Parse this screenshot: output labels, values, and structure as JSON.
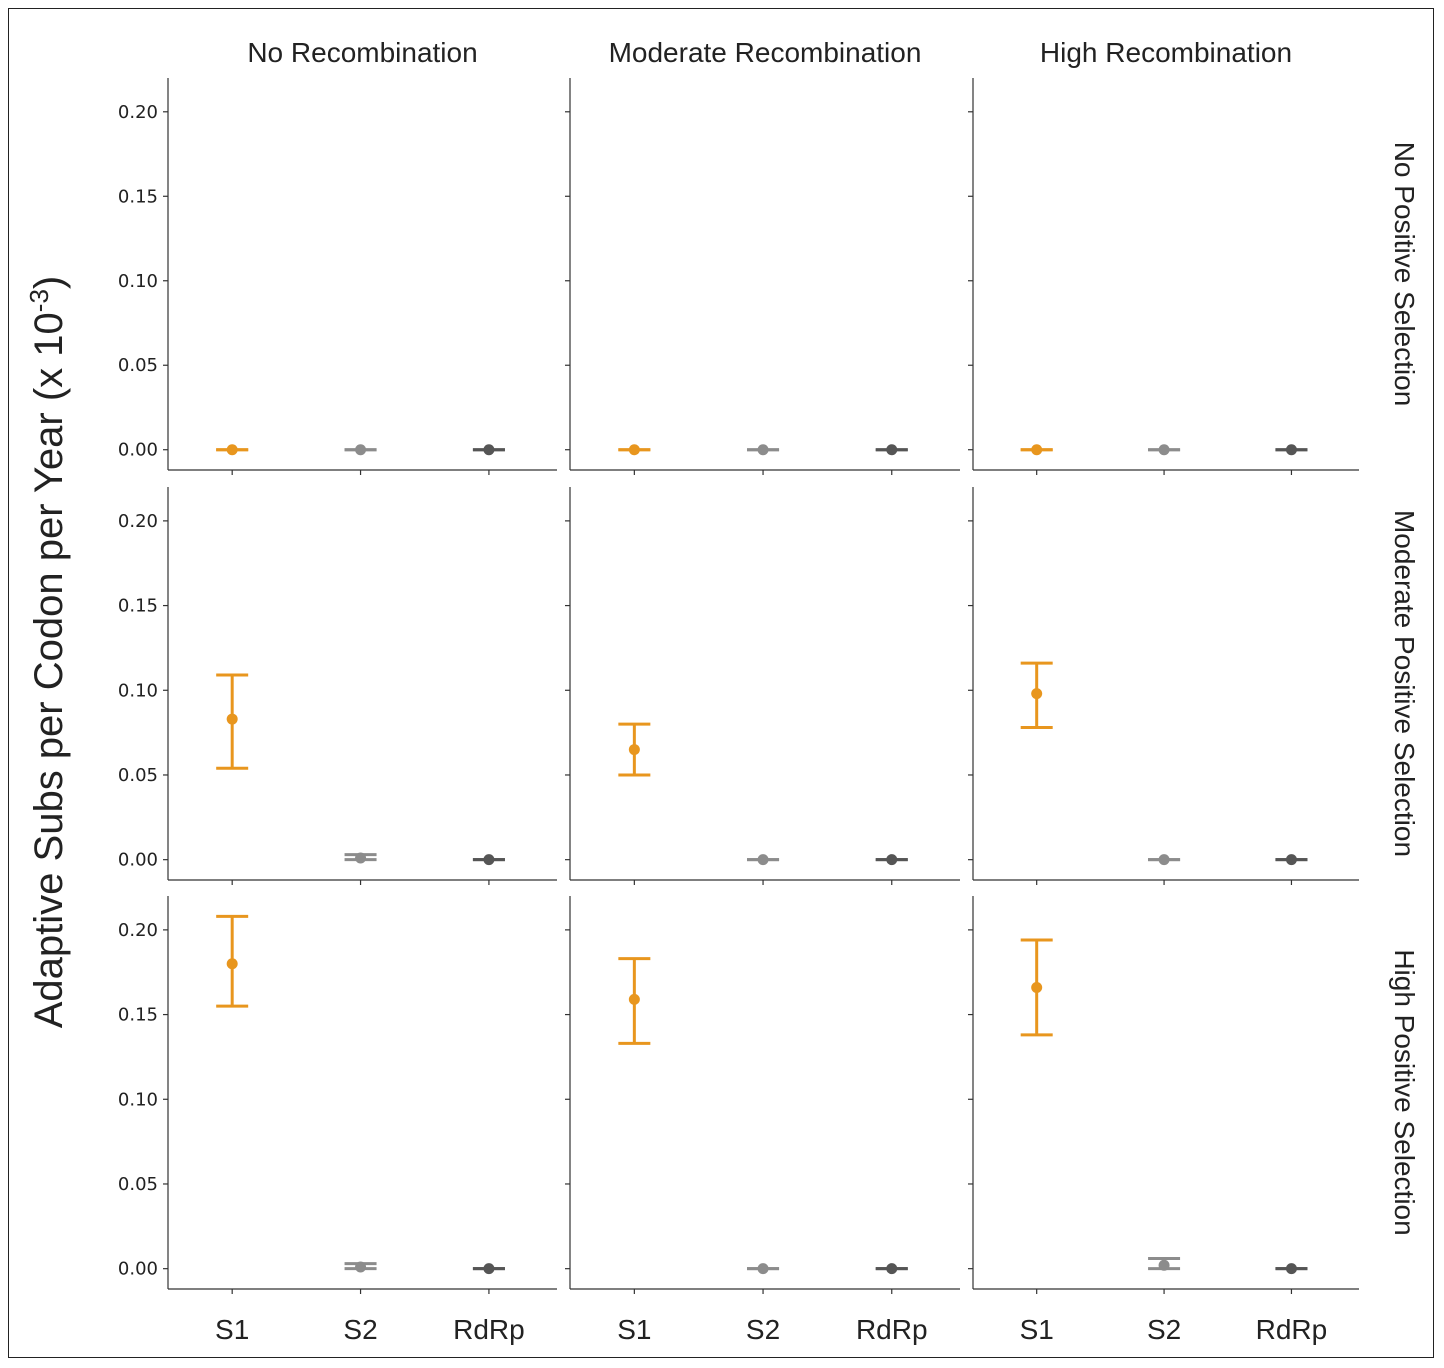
{
  "chart_data": {
    "type": "scatter",
    "subtype": "point-with-error-bars facet grid",
    "ylabel": "Adaptive Subs per Codon per Year (x 10^-3)",
    "ylabel_parts": {
      "main": "Adaptive Subs per Codon per Year (x 10",
      "sup": "-3",
      "close": ")"
    },
    "col_titles": [
      "No Recombination",
      "Moderate Recombination",
      "High Recombination"
    ],
    "row_titles": [
      "No Positive Selection",
      "Moderate Positive Selection",
      "High Positive Selection"
    ],
    "categories": [
      "S1",
      "S2",
      "RdRp"
    ],
    "colors": {
      "S1": "#E8961E",
      "S2": "#8C8C8C",
      "RdRp": "#555555"
    },
    "ylim": [
      -0.012,
      0.22
    ],
    "yticks": [
      0.0,
      0.05,
      0.1,
      0.15,
      0.2
    ],
    "ytick_labels": [
      "0.00",
      "0.05",
      "0.10",
      "0.15",
      "0.20"
    ],
    "grid": false,
    "panels": [
      {
        "row": 0,
        "col": 0,
        "points": [
          {
            "category": "S1",
            "y": 0.0,
            "low": 0.0,
            "high": 0.0
          },
          {
            "category": "S2",
            "y": 0.0,
            "low": 0.0,
            "high": 0.0
          },
          {
            "category": "RdRp",
            "y": 0.0,
            "low": 0.0,
            "high": 0.0
          }
        ]
      },
      {
        "row": 0,
        "col": 1,
        "points": [
          {
            "category": "S1",
            "y": 0.0,
            "low": 0.0,
            "high": 0.0
          },
          {
            "category": "S2",
            "y": 0.0,
            "low": 0.0,
            "high": 0.0
          },
          {
            "category": "RdRp",
            "y": 0.0,
            "low": 0.0,
            "high": 0.0
          }
        ]
      },
      {
        "row": 0,
        "col": 2,
        "points": [
          {
            "category": "S1",
            "y": 0.0,
            "low": 0.0,
            "high": 0.0
          },
          {
            "category": "S2",
            "y": 0.0,
            "low": 0.0,
            "high": 0.0
          },
          {
            "category": "RdRp",
            "y": 0.0,
            "low": 0.0,
            "high": 0.0
          }
        ]
      },
      {
        "row": 1,
        "col": 0,
        "points": [
          {
            "category": "S1",
            "y": 0.083,
            "low": 0.054,
            "high": 0.109
          },
          {
            "category": "S2",
            "y": 0.001,
            "low": 0.0,
            "high": 0.003
          },
          {
            "category": "RdRp",
            "y": 0.0,
            "low": 0.0,
            "high": 0.0
          }
        ]
      },
      {
        "row": 1,
        "col": 1,
        "points": [
          {
            "category": "S1",
            "y": 0.065,
            "low": 0.05,
            "high": 0.08
          },
          {
            "category": "S2",
            "y": 0.0,
            "low": 0.0,
            "high": 0.0
          },
          {
            "category": "RdRp",
            "y": 0.0,
            "low": 0.0,
            "high": 0.0
          }
        ]
      },
      {
        "row": 1,
        "col": 2,
        "points": [
          {
            "category": "S1",
            "y": 0.098,
            "low": 0.078,
            "high": 0.116
          },
          {
            "category": "S2",
            "y": 0.0,
            "low": 0.0,
            "high": 0.0
          },
          {
            "category": "RdRp",
            "y": 0.0,
            "low": 0.0,
            "high": 0.0
          }
        ]
      },
      {
        "row": 2,
        "col": 0,
        "points": [
          {
            "category": "S1",
            "y": 0.18,
            "low": 0.155,
            "high": 0.208
          },
          {
            "category": "S2",
            "y": 0.001,
            "low": 0.0,
            "high": 0.003
          },
          {
            "category": "RdRp",
            "y": 0.0,
            "low": 0.0,
            "high": 0.0
          }
        ]
      },
      {
        "row": 2,
        "col": 1,
        "points": [
          {
            "category": "S1",
            "y": 0.159,
            "low": 0.133,
            "high": 0.183
          },
          {
            "category": "S2",
            "y": 0.0,
            "low": 0.0,
            "high": 0.0
          },
          {
            "category": "RdRp",
            "y": 0.0,
            "low": 0.0,
            "high": 0.0
          }
        ]
      },
      {
        "row": 2,
        "col": 2,
        "points": [
          {
            "category": "S1",
            "y": 0.166,
            "low": 0.138,
            "high": 0.194
          },
          {
            "category": "S2",
            "y": 0.002,
            "low": 0.0,
            "high": 0.006
          },
          {
            "category": "RdRp",
            "y": 0.0,
            "low": 0.0,
            "high": 0.0
          }
        ]
      }
    ]
  }
}
